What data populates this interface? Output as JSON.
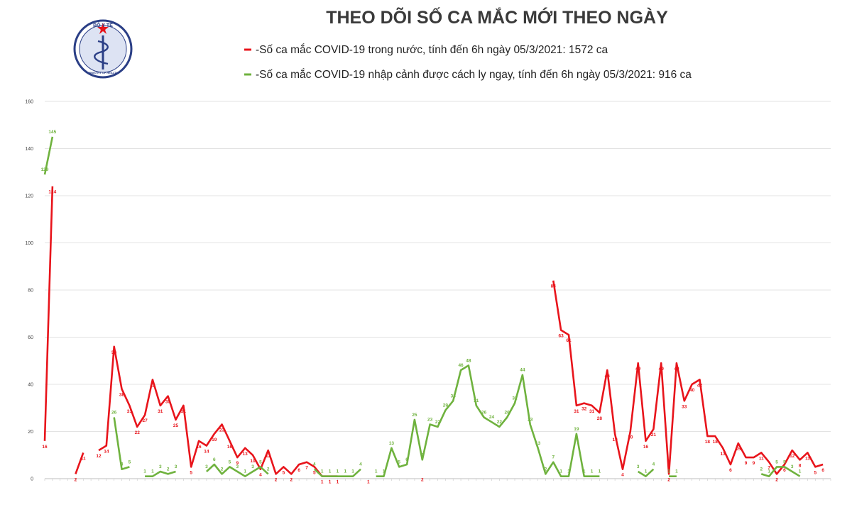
{
  "title": "THEO DÕI SỐ CA MẮC MỚI THEO NGÀY",
  "logo": {
    "top_text": "BỘ Y TẾ",
    "bottom_text": "MINISTRY OF HEALTH"
  },
  "colors": {
    "domestic": "#e8141b",
    "imported": "#6fb23e",
    "grid": "#e3e3e3",
    "logo_ring": "#2b3f86"
  },
  "chart_data": {
    "type": "line",
    "title": "THEO DÕI SỐ CA MẮC MỚI THEO NGÀY",
    "ylim": [
      0,
      160
    ],
    "yticks": [
      0,
      20,
      40,
      60,
      80,
      100,
      120,
      140,
      160
    ],
    "grid": true,
    "legend_position": "top",
    "series": [
      {
        "name": "Số ca mắc COVID-19 trong nước, tính đến 6h ngày 05/3/2021: 1572 ca",
        "color": "#e8141b",
        "labels": [
          {
            "x": 0,
            "y": 16
          },
          {
            "x": 1,
            "y": 124
          },
          {
            "x": 4,
            "y": 2
          },
          {
            "x": 5,
            "y": 11
          },
          {
            "x": 7,
            "y": 12
          },
          {
            "x": 8,
            "y": 14
          },
          {
            "x": 9,
            "y": 56
          },
          {
            "x": 10,
            "y": 38
          },
          {
            "x": 11,
            "y": 31
          },
          {
            "x": 12,
            "y": 22
          },
          {
            "x": 13,
            "y": 27
          },
          {
            "x": 14,
            "y": 42
          },
          {
            "x": 15,
            "y": 31
          },
          {
            "x": 16,
            "y": 35
          },
          {
            "x": 17,
            "y": 25
          },
          {
            "x": 18,
            "y": 31
          },
          {
            "x": 19,
            "y": 5
          },
          {
            "x": 20,
            "y": 16
          },
          {
            "x": 21,
            "y": 14
          },
          {
            "x": 22,
            "y": 19
          },
          {
            "x": 23,
            "y": 23
          },
          {
            "x": 24,
            "y": 16
          },
          {
            "x": 25,
            "y": 9
          },
          {
            "x": 26,
            "y": 13
          },
          {
            "x": 27,
            "y": 10
          },
          {
            "x": 28,
            "y": 4
          },
          {
            "x": 29,
            "y": 12
          },
          {
            "x": 30,
            "y": 2
          },
          {
            "x": 31,
            "y": 5
          },
          {
            "x": 32,
            "y": 2
          },
          {
            "x": 33,
            "y": 6
          },
          {
            "x": 34,
            "y": 7
          },
          {
            "x": 35,
            "y": 5
          },
          {
            "x": 36,
            "y": 1
          },
          {
            "x": 37,
            "y": 1
          },
          {
            "x": 38,
            "y": 1
          },
          {
            "x": 42,
            "y": 1
          },
          {
            "x": 49,
            "y": 2
          },
          {
            "x": 66,
            "y": 84
          },
          {
            "x": 67,
            "y": 63
          },
          {
            "x": 68,
            "y": 61
          },
          {
            "x": 69,
            "y": 31
          },
          {
            "x": 70,
            "y": 32
          },
          {
            "x": 71,
            "y": 31
          },
          {
            "x": 72,
            "y": 28
          },
          {
            "x": 73,
            "y": 46
          },
          {
            "x": 74,
            "y": 19
          },
          {
            "x": 75,
            "y": 4
          },
          {
            "x": 76,
            "y": 20
          },
          {
            "x": 77,
            "y": 49
          },
          {
            "x": 78,
            "y": 16
          },
          {
            "x": 79,
            "y": 21
          },
          {
            "x": 80,
            "y": 49
          },
          {
            "x": 81,
            "y": 2
          },
          {
            "x": 82,
            "y": 49
          },
          {
            "x": 83,
            "y": 33
          },
          {
            "x": 84,
            "y": 40
          },
          {
            "x": 85,
            "y": 42
          },
          {
            "x": 86,
            "y": 18
          },
          {
            "x": 87,
            "y": 18
          },
          {
            "x": 88,
            "y": 13
          },
          {
            "x": 89,
            "y": 6
          },
          {
            "x": 90,
            "y": 15
          },
          {
            "x": 91,
            "y": 9
          },
          {
            "x": 92,
            "y": 9
          },
          {
            "x": 93,
            "y": 11
          },
          {
            "x": 94,
            "y": 7
          },
          {
            "x": 95,
            "y": 2
          },
          {
            "x": 96,
            "y": 6
          },
          {
            "x": 97,
            "y": 12
          },
          {
            "x": 98,
            "y": 8
          },
          {
            "x": 99,
            "y": 11
          },
          {
            "x": 100,
            "y": 5
          },
          {
            "x": 101,
            "y": 6
          }
        ]
      },
      {
        "name": "Số ca mắc COVID-19 nhập cảnh được cách ly ngay, tính đến 6h ngày 05/3/2021: 916 ca",
        "color": "#6fb23e",
        "labels": [
          {
            "x": 0,
            "y": 129
          },
          {
            "x": 1,
            "y": 145
          },
          {
            "x": 9,
            "y": 26
          },
          {
            "x": 10,
            "y": 4
          },
          {
            "x": 11,
            "y": 5
          },
          {
            "x": 13,
            "y": 1
          },
          {
            "x": 14,
            "y": 1
          },
          {
            "x": 15,
            "y": 3
          },
          {
            "x": 16,
            "y": 2
          },
          {
            "x": 17,
            "y": 3
          },
          {
            "x": 21,
            "y": 3
          },
          {
            "x": 22,
            "y": 6
          },
          {
            "x": 23,
            "y": 2
          },
          {
            "x": 24,
            "y": 5
          },
          {
            "x": 25,
            "y": 3
          },
          {
            "x": 26,
            "y": 1
          },
          {
            "x": 27,
            "y": 3
          },
          {
            "x": 28,
            "y": 5
          },
          {
            "x": 29,
            "y": 2
          },
          {
            "x": 35,
            "y": 4
          },
          {
            "x": 36,
            "y": 1
          },
          {
            "x": 37,
            "y": 1
          },
          {
            "x": 38,
            "y": 1
          },
          {
            "x": 39,
            "y": 1
          },
          {
            "x": 40,
            "y": 1
          },
          {
            "x": 41,
            "y": 4
          },
          {
            "x": 43,
            "y": 1
          },
          {
            "x": 44,
            "y": 1
          },
          {
            "x": 45,
            "y": 13
          },
          {
            "x": 46,
            "y": 5
          },
          {
            "x": 47,
            "y": 6
          },
          {
            "x": 48,
            "y": 25
          },
          {
            "x": 49,
            "y": 8
          },
          {
            "x": 50,
            "y": 23
          },
          {
            "x": 51,
            "y": 22
          },
          {
            "x": 52,
            "y": 29
          },
          {
            "x": 53,
            "y": 33
          },
          {
            "x": 54,
            "y": 46
          },
          {
            "x": 55,
            "y": 48
          },
          {
            "x": 56,
            "y": 31
          },
          {
            "x": 57,
            "y": 26
          },
          {
            "x": 58,
            "y": 24
          },
          {
            "x": 59,
            "y": 22
          },
          {
            "x": 60,
            "y": 26
          },
          {
            "x": 61,
            "y": 32
          },
          {
            "x": 62,
            "y": 44
          },
          {
            "x": 63,
            "y": 23
          },
          {
            "x": 64,
            "y": 13
          },
          {
            "x": 65,
            "y": 2
          },
          {
            "x": 66,
            "y": 7
          },
          {
            "x": 67,
            "y": 1
          },
          {
            "x": 68,
            "y": 1
          },
          {
            "x": 69,
            "y": 19
          },
          {
            "x": 70,
            "y": 1
          },
          {
            "x": 71,
            "y": 1
          },
          {
            "x": 72,
            "y": 1
          },
          {
            "x": 77,
            "y": 3
          },
          {
            "x": 78,
            "y": 1
          },
          {
            "x": 79,
            "y": 4
          },
          {
            "x": 81,
            "y": 1
          },
          {
            "x": 82,
            "y": 1
          },
          {
            "x": 93,
            "y": 2
          },
          {
            "x": 94,
            "y": 1
          },
          {
            "x": 95,
            "y": 5
          },
          {
            "x": 96,
            "y": 5
          },
          {
            "x": 97,
            "y": 3
          },
          {
            "x": 98,
            "y": 1
          }
        ]
      }
    ]
  }
}
